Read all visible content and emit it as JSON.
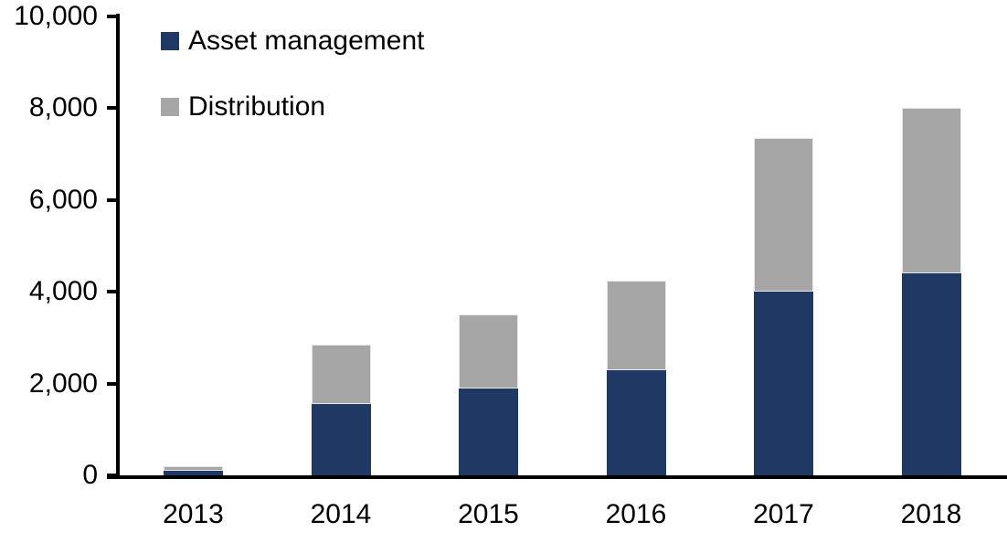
{
  "chart_data": {
    "type": "bar",
    "stacked": true,
    "title": "",
    "xlabel": "",
    "ylabel": "",
    "categories": [
      "2013",
      "2014",
      "2015",
      "2016",
      "2017",
      "2018"
    ],
    "series": [
      {
        "name": "Asset management",
        "color": "#1F3864",
        "values": [
          100,
          1550,
          1900,
          2300,
          4000,
          4400
        ]
      },
      {
        "name": "Distribution",
        "color": "#A6A6A6",
        "values": [
          90,
          1300,
          1600,
          1950,
          3350,
          3600
        ]
      }
    ],
    "totals": [
      190,
      2850,
      3500,
      4250,
      7350,
      8000
    ],
    "ylim": [
      0,
      10000
    ],
    "yticks": {
      "values": [
        0,
        2000,
        4000,
        6000,
        8000,
        10000
      ],
      "labels": [
        "0",
        "2,000",
        "4,000",
        "6,000",
        "8,000",
        "10,000"
      ]
    },
    "grid": false,
    "legend_position": "top-left-inside",
    "axis_color": "#000000",
    "text_color": "#000000",
    "background_color": "#FFFFFF"
  }
}
